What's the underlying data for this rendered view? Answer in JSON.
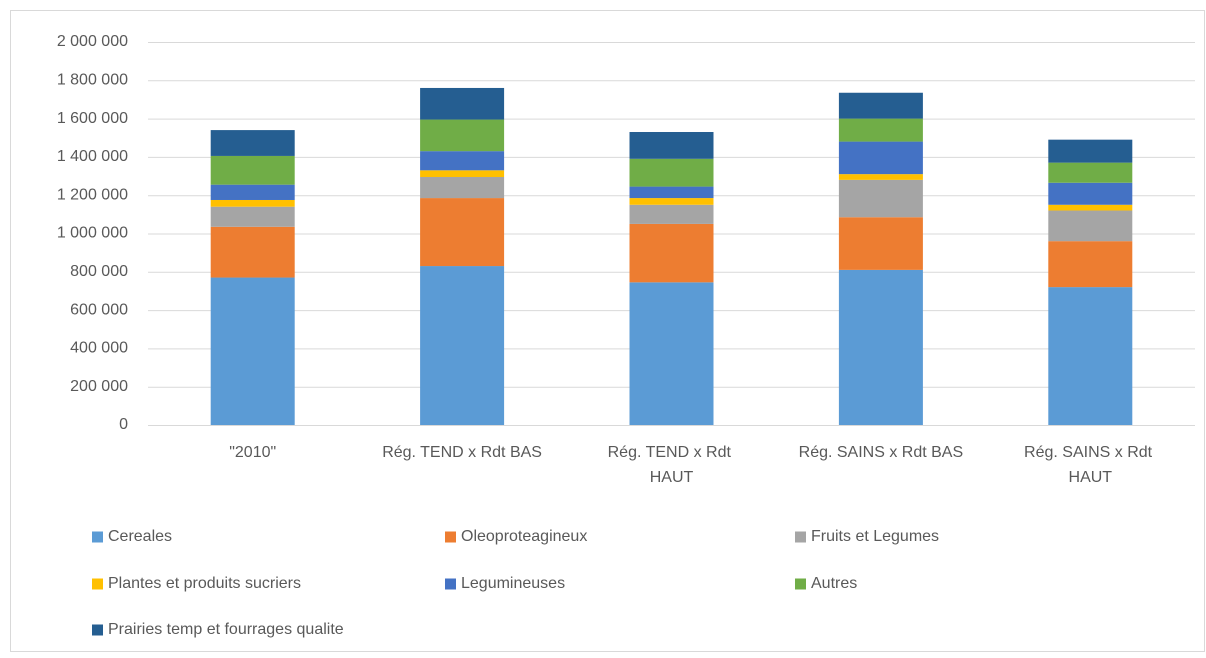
{
  "chart_data": {
    "type": "stacked_bar",
    "categories": [
      "\"2010\"",
      "Rég. TEND x Rdt BAS",
      "Rég. TEND x Rdt HAUT",
      "Rég. SAINS x Rdt BAS",
      "Rég. SAINS x Rdt HAUT"
    ],
    "series": [
      {
        "name": "Cereales",
        "color": "#5b9bd5",
        "values": [
          770000,
          830000,
          745000,
          810000,
          720000
        ]
      },
      {
        "name": "Oleoproteagineux",
        "color": "#ed7d31",
        "values": [
          265000,
          355000,
          305000,
          275000,
          240000
        ]
      },
      {
        "name": "Fruits et Legumes",
        "color": "#a5a5a5",
        "values": [
          105000,
          110000,
          100000,
          195000,
          160000
        ]
      },
      {
        "name": "Plantes et produits sucriers",
        "color": "#ffc000",
        "values": [
          35000,
          35000,
          35000,
          30000,
          30000
        ]
      },
      {
        "name": "Legumineuses",
        "color": "#4472c4",
        "values": [
          80000,
          100000,
          60000,
          170000,
          115000
        ]
      },
      {
        "name": "Autres",
        "color": "#70ad47",
        "values": [
          150000,
          165000,
          145000,
          120000,
          105000
        ]
      },
      {
        "name": "Prairies temp et fourrages qualite",
        "color": "#255e91",
        "values": [
          135000,
          165000,
          140000,
          135000,
          120000
        ]
      }
    ],
    "ylim": [
      0,
      2000000
    ],
    "yticks": [
      0,
      {
        "value": 200000,
        "label": "200 000"
      },
      {
        "value": 400000,
        "label": "400 000"
      },
      {
        "value": 600000,
        "label": "600 000"
      },
      {
        "value": 800000,
        "label": "800 000"
      },
      {
        "value": 1000000,
        "label": "1 000 000"
      },
      {
        "value": 1200000,
        "label": "1 200 000"
      },
      {
        "value": 1400000,
        "label": "1 400 000"
      },
      {
        "value": 1600000,
        "label": "1 600 000"
      },
      {
        "value": 1800000,
        "label": "1 800 000"
      },
      {
        "value": 2000000,
        "label": "2 000 000"
      }
    ],
    "grid": true,
    "legend": "bottom"
  }
}
